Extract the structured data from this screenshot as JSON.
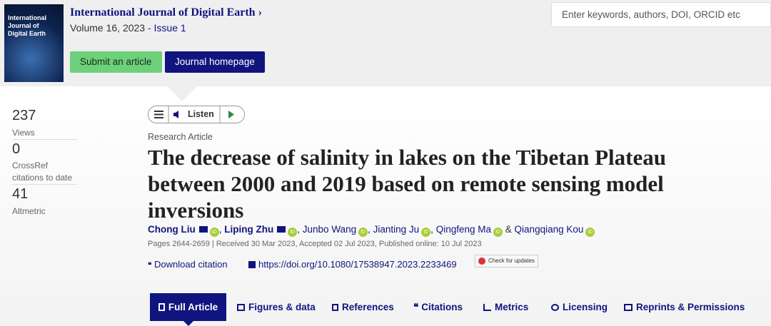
{
  "journal": {
    "cover_title": "International Journal of Digital Earth",
    "name": "International Journal of Digital Earth",
    "volume": "Volume 16, 2023 -",
    "issue": "Issue 1"
  },
  "buttons": {
    "submit": "Submit an article",
    "homepage": "Journal homepage"
  },
  "search": {
    "placeholder": "Enter keywords, authors, DOI, ORCID etc"
  },
  "metrics": [
    {
      "value": 237,
      "label": "Views"
    },
    {
      "value": 0,
      "label": "CrossRef citations to date"
    },
    {
      "value": 41,
      "label": "Altmetric"
    }
  ],
  "listen": "Listen",
  "article": {
    "type": "Research Article",
    "title": "The decrease of salinity in lakes on the Tibetan Plateau between 2000 and 2019 based on remote sensing model inversions",
    "authors": [
      "Chong Liu",
      "Liping Zhu",
      "Junbo Wang",
      "Jianting Ju",
      "Qingfeng Ma",
      "Qiangqiang Kou"
    ],
    "author_separator": ",",
    "last_separator": "&",
    "info": "Pages 2644-2659 | Received 30 Mar 2023, Accepted 02 Jul 2023, Published online: 10 Jul 2023",
    "download": "Download citation",
    "doi": "https://doi.org/10.1080/17538947.2023.2233469",
    "check": "Check for updates"
  },
  "tabs": [
    "Full Article",
    "Figures & data",
    "References",
    "Citations",
    "Metrics",
    "Licensing",
    "Reprints & Permissions"
  ]
}
